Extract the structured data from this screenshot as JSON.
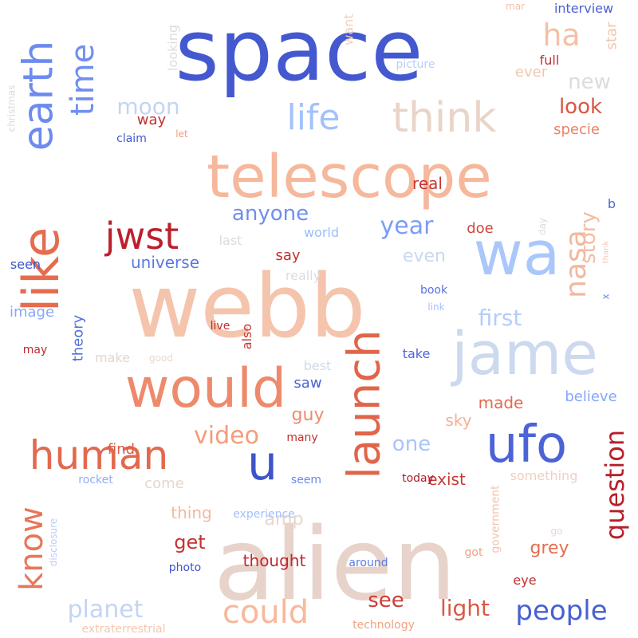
{
  "background": "#ffffff",
  "words": [
    {
      "text": "alien",
      "color": "#e8d3ca"
    },
    {
      "text": "space",
      "color": "#4459cf"
    },
    {
      "text": "webb",
      "color": "#f4c4ad"
    },
    {
      "text": "telescope",
      "color": "#f6b89c"
    },
    {
      "text": "jame",
      "color": "#ccd9ee"
    },
    {
      "text": "would",
      "color": "#ee8a6c"
    },
    {
      "text": "wa",
      "color": "#aac7fc"
    },
    {
      "text": "like",
      "color": "#e56c4f"
    },
    {
      "text": "ufo",
      "color": "#4c63d8"
    },
    {
      "text": "think",
      "color": "#ead4c8"
    },
    {
      "text": "human",
      "color": "#e2694e"
    },
    {
      "text": "jwst",
      "color": "#bd1f2d"
    },
    {
      "text": "launch",
      "color": "#e0654a"
    },
    {
      "text": "earth",
      "color": "#6b8bef"
    },
    {
      "text": "u",
      "color": "#3e54c9"
    },
    {
      "text": "ha",
      "color": "#f5c0a6"
    },
    {
      "text": "time",
      "color": "#6f8ff1"
    },
    {
      "text": "could",
      "color": "#f7b89c"
    },
    {
      "text": "know",
      "color": "#e8765a"
    },
    {
      "text": "people",
      "color": "#4761d2"
    },
    {
      "text": "life",
      "color": "#a3c1fd"
    },
    {
      "text": "nasa",
      "color": "#f1b89e"
    },
    {
      "text": "planet",
      "color": "#c4d5f2"
    },
    {
      "text": "year",
      "color": "#7b9df6"
    },
    {
      "text": "question",
      "color": "#b51f2b"
    },
    {
      "text": "see",
      "color": "#cb3e38"
    },
    {
      "text": "video",
      "color": "#f49c7c"
    },
    {
      "text": "anyone",
      "color": "#6f8fee"
    },
    {
      "text": "light",
      "color": "#d85a45"
    },
    {
      "text": "moon",
      "color": "#c4d5f2"
    },
    {
      "text": "look",
      "color": "#d85743"
    },
    {
      "text": "first",
      "color": "#b4cdfa"
    },
    {
      "text": "story",
      "color": "#f4bca3"
    },
    {
      "text": "one",
      "color": "#a9c4fb"
    },
    {
      "text": "get",
      "color": "#c53332"
    },
    {
      "text": "guy",
      "color": "#ec8c6d"
    },
    {
      "text": "new",
      "color": "#dbdcde"
    },
    {
      "text": "universe",
      "color": "#5a78e3"
    },
    {
      "text": "amp",
      "color": "#e8d5cc"
    },
    {
      "text": "even",
      "color": "#cad8ef"
    },
    {
      "text": "made",
      "color": "#e26a4e"
    },
    {
      "text": "thing",
      "color": "#f2b9a0"
    },
    {
      "text": "thought",
      "color": "#c0282f"
    },
    {
      "text": "exist",
      "color": "#c73834"
    },
    {
      "text": "grey",
      "color": "#e36e52"
    },
    {
      "text": "doe",
      "color": "#d0473c"
    },
    {
      "text": "say",
      "color": "#c13030"
    },
    {
      "text": "real",
      "color": "#c63734"
    },
    {
      "text": "specie",
      "color": "#e98466"
    },
    {
      "text": "way",
      "color": "#c13030"
    },
    {
      "text": "sky",
      "color": "#f7b092"
    },
    {
      "text": "come",
      "color": "#e4d7cf"
    },
    {
      "text": "believe",
      "color": "#86a7f8"
    },
    {
      "text": "world",
      "color": "#9bbcfc"
    },
    {
      "text": "image",
      "color": "#8aa8f6"
    },
    {
      "text": "theory",
      "color": "#5470dc"
    },
    {
      "text": "make",
      "color": "#e5d6cc"
    },
    {
      "text": "find",
      "color": "#dc5c46"
    },
    {
      "text": "saw",
      "color": "#4a62d2"
    },
    {
      "text": "best",
      "color": "#cfdaea"
    },
    {
      "text": "looking",
      "color": "#dcdcdf"
    },
    {
      "text": "star",
      "color": "#f3c5ad"
    },
    {
      "text": "ever",
      "color": "#f2c6b1"
    },
    {
      "text": "want",
      "color": "#f0d0c1"
    },
    {
      "text": "interview",
      "color": "#4a61d1"
    },
    {
      "text": "picture",
      "color": "#b8cff9"
    },
    {
      "text": "full",
      "color": "#c13030"
    },
    {
      "text": "mar",
      "color": "#f5c0a6"
    },
    {
      "text": "claim",
      "color": "#4357cc"
    },
    {
      "text": "let",
      "color": "#ef9d80"
    },
    {
      "text": "christmas",
      "color": "#dad9dc"
    },
    {
      "text": "last",
      "color": "#dadade"
    },
    {
      "text": "seen",
      "color": "#3e54c9"
    },
    {
      "text": "may",
      "color": "#bb2a2f"
    },
    {
      "text": "good",
      "color": "#e6d9d1"
    },
    {
      "text": "live",
      "color": "#bf2b30"
    },
    {
      "text": "also",
      "color": "#c83834"
    },
    {
      "text": "really",
      "color": "#dcdde0"
    },
    {
      "text": "book",
      "color": "#5874de"
    },
    {
      "text": "link",
      "color": "#a3c1fd"
    },
    {
      "text": "take",
      "color": "#4b64d5"
    },
    {
      "text": "day",
      "color": "#d8dbe0"
    },
    {
      "text": "thank",
      "color": "#f4c9b6"
    },
    {
      "text": "b",
      "color": "#4c66d6"
    },
    {
      "text": "x",
      "color": "#7090f1"
    },
    {
      "text": "something",
      "color": "#f0cfc1"
    },
    {
      "text": "disclosure",
      "color": "#b9cef8"
    },
    {
      "text": "rocket",
      "color": "#8eaef8"
    },
    {
      "text": "seem",
      "color": "#6a89ee"
    },
    {
      "text": "today",
      "color": "#b3192c"
    },
    {
      "text": "many",
      "color": "#c2302f"
    },
    {
      "text": "experience",
      "color": "#a3c1fd"
    },
    {
      "text": "government",
      "color": "#f4c4ae"
    },
    {
      "text": "go",
      "color": "#e9d5cb"
    },
    {
      "text": "got",
      "color": "#f0a183"
    },
    {
      "text": "around",
      "color": "#5c7be5"
    },
    {
      "text": "photo",
      "color": "#3e54c9"
    },
    {
      "text": "eye",
      "color": "#c13030"
    },
    {
      "text": "technology",
      "color": "#f0a282"
    },
    {
      "text": "extraterrestrial",
      "color": "#f4c6b0"
    }
  ]
}
